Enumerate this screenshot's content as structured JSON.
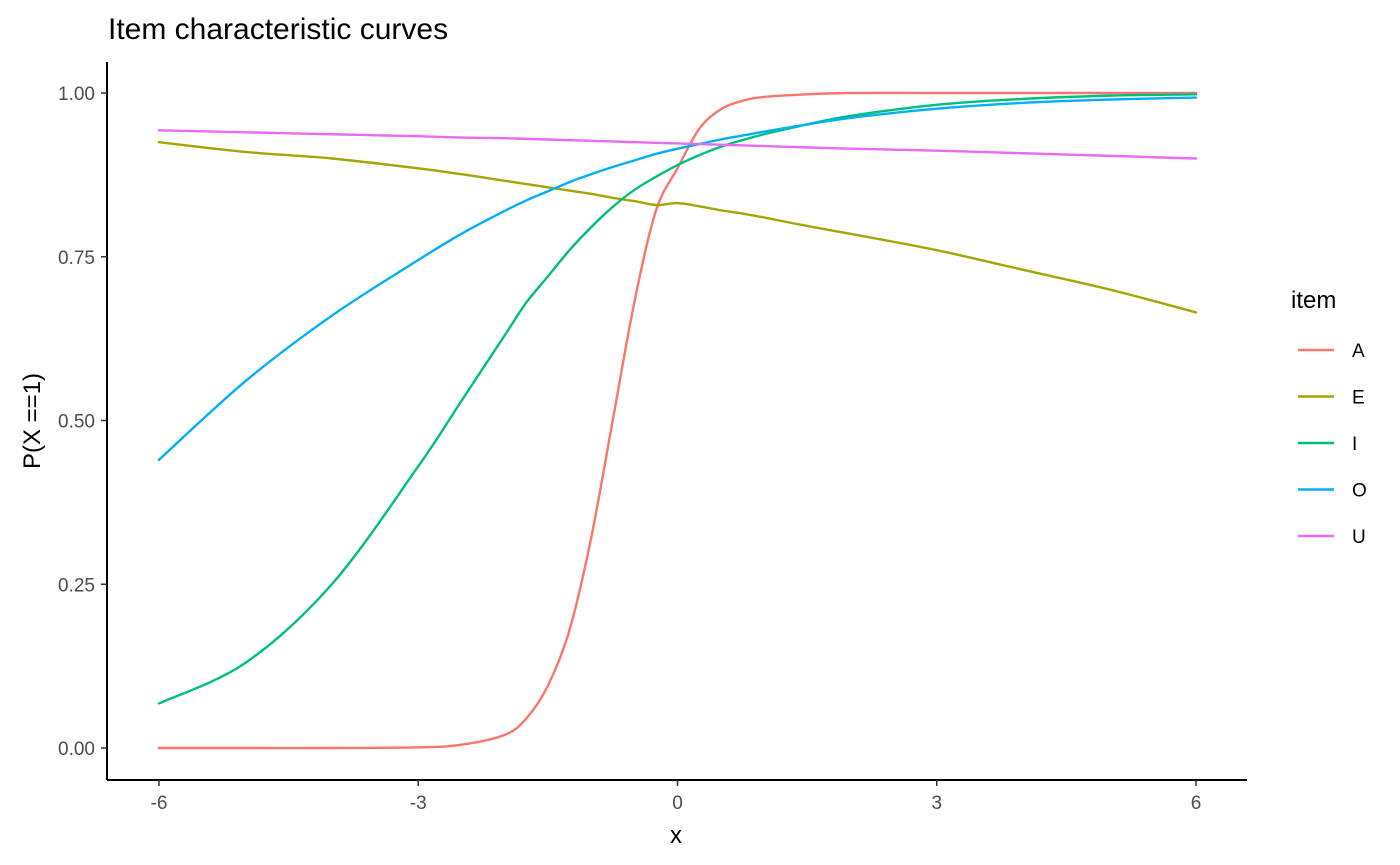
{
  "chart_data": {
    "type": "line",
    "title": "Item characteristic curves",
    "xlabel": "x",
    "ylabel": "P(X ==1)",
    "xlim": [
      -6,
      6
    ],
    "ylim": [
      0,
      1
    ],
    "x_ticks": [
      -6,
      -3,
      0,
      3,
      6
    ],
    "x_tick_labels": [
      "-6",
      "-3",
      "0",
      "3",
      "6"
    ],
    "y_ticks": [
      0,
      0.25,
      0.5,
      0.75,
      1
    ],
    "y_tick_labels": [
      "0.00",
      "0.25",
      "0.50",
      "0.75",
      "1.00"
    ],
    "grid": false,
    "legend": {
      "title": "item",
      "position": "right"
    },
    "x": [
      -6,
      -5,
      -4,
      -3,
      -2.5,
      -2,
      -1.75,
      -1.5,
      -1.25,
      -1,
      -0.75,
      -0.5,
      -0.25,
      0,
      0.25,
      0.5,
      0.75,
      1,
      1.5,
      2,
      3,
      4,
      5,
      6
    ],
    "series": [
      {
        "name": "A",
        "color": "#F8766D",
        "values": [
          0.0,
          0.0,
          0.0,
          0.001,
          0.005,
          0.02,
          0.045,
          0.095,
          0.18,
          0.32,
          0.5,
          0.68,
          0.82,
          0.885,
          0.945,
          0.975,
          0.988,
          0.994,
          0.998,
          1.0,
          1.0,
          1.0,
          1.0,
          1.0
        ]
      },
      {
        "name": "E",
        "color": "#A3A500",
        "values": [
          0.925,
          0.91,
          0.9,
          0.885,
          0.876,
          0.866,
          0.861,
          0.856,
          0.851,
          0.846,
          0.84,
          0.835,
          0.829,
          0.832,
          0.827,
          0.821,
          0.816,
          0.81,
          0.797,
          0.785,
          0.76,
          0.73,
          0.7,
          0.665
        ]
      },
      {
        "name": "I",
        "color": "#00BF7D",
        "values": [
          0.068,
          0.13,
          0.25,
          0.43,
          0.53,
          0.63,
          0.68,
          0.72,
          0.76,
          0.795,
          0.826,
          0.852,
          0.872,
          0.89,
          0.905,
          0.918,
          0.928,
          0.937,
          0.952,
          0.965,
          0.982,
          0.991,
          0.996,
          0.998
        ]
      },
      {
        "name": "O",
        "color": "#00B0F6",
        "values": [
          0.44,
          0.56,
          0.66,
          0.745,
          0.785,
          0.82,
          0.836,
          0.85,
          0.864,
          0.876,
          0.887,
          0.897,
          0.907,
          0.915,
          0.922,
          0.929,
          0.935,
          0.941,
          0.952,
          0.962,
          0.976,
          0.985,
          0.99,
          0.993
        ]
      },
      {
        "name": "U",
        "color": "#E76BF3",
        "values": [
          0.943,
          0.94,
          0.937,
          0.934,
          0.932,
          0.931,
          0.93,
          0.929,
          0.928,
          0.927,
          0.926,
          0.925,
          0.924,
          0.923,
          0.922,
          0.921,
          0.92,
          0.919,
          0.917,
          0.915,
          0.912,
          0.908,
          0.904,
          0.9
        ]
      }
    ]
  }
}
